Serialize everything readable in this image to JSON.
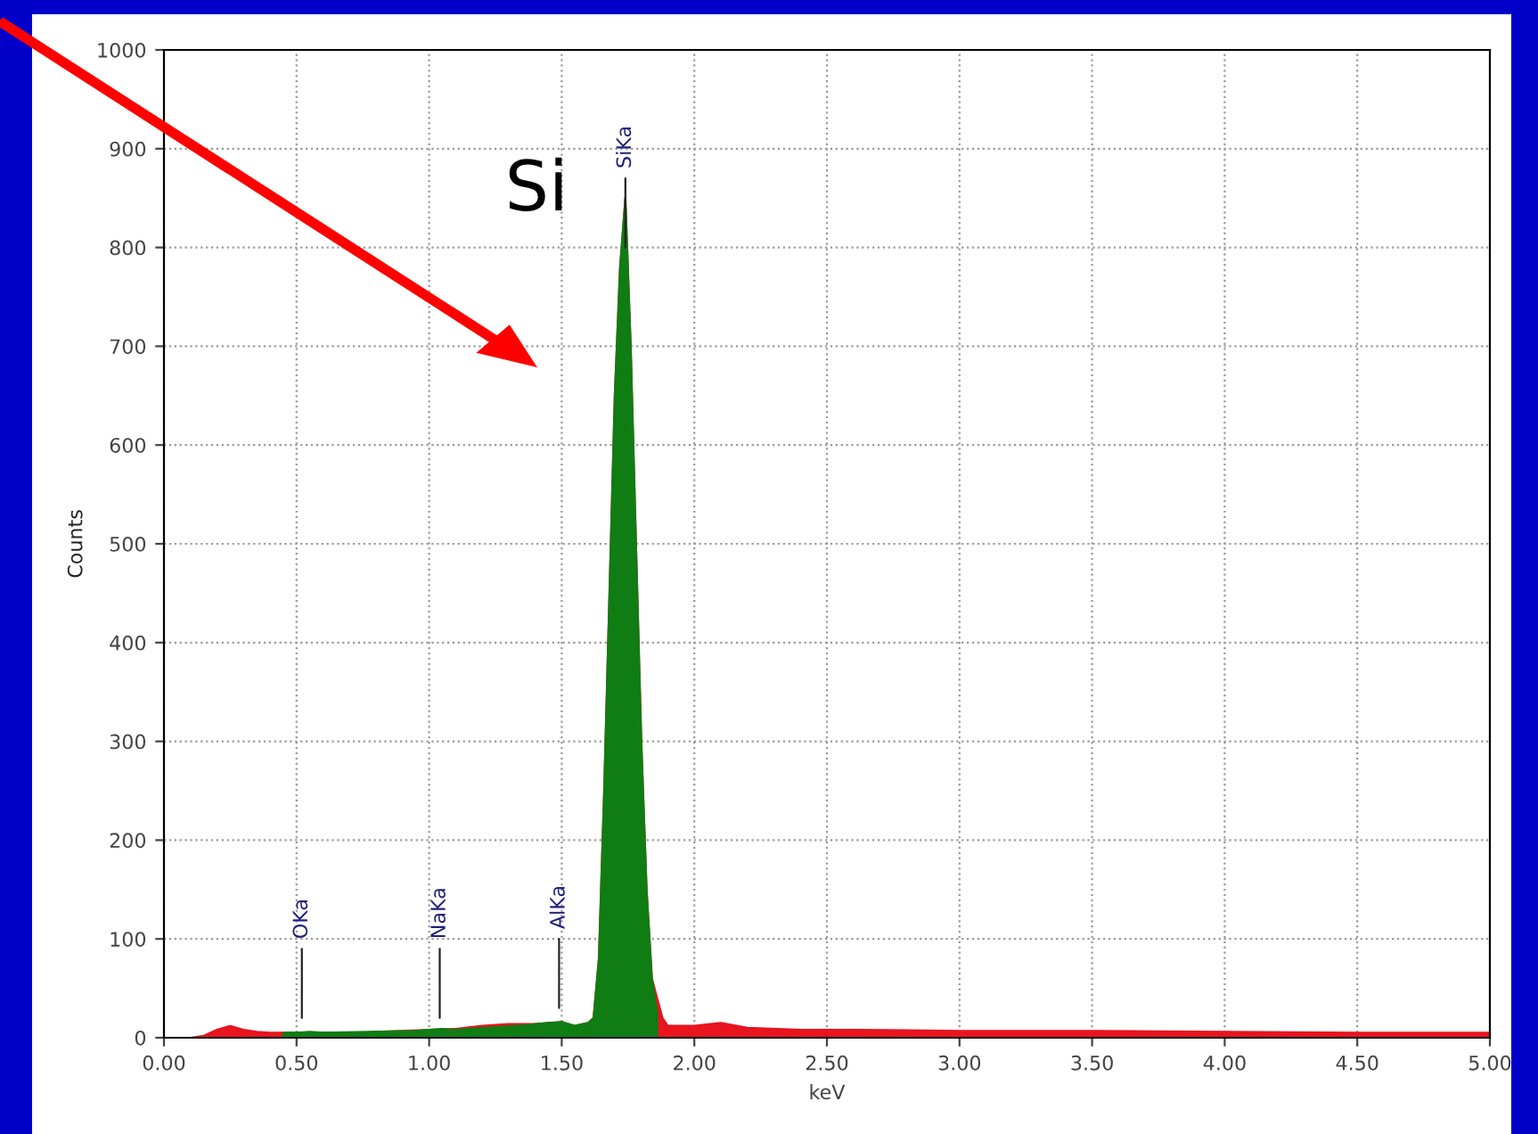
{
  "chart_data": {
    "type": "area",
    "xlabel": "keV",
    "ylabel": "Counts",
    "xlim": [
      0,
      5
    ],
    "xticks": [
      {
        "value": 0,
        "label": "0.00"
      },
      {
        "value": 0.5,
        "label": "0.50"
      },
      {
        "value": 1,
        "label": "1.00"
      },
      {
        "value": 1.5,
        "label": "1.50"
      },
      {
        "value": 2,
        "label": "2.00"
      },
      {
        "value": 2.5,
        "label": "2.50"
      },
      {
        "value": 3,
        "label": "3.00"
      },
      {
        "value": 3.5,
        "label": "3.50"
      },
      {
        "value": 4,
        "label": "4.00"
      },
      {
        "value": 4.5,
        "label": "4.50"
      },
      {
        "value": 5,
        "label": "5.00"
      }
    ],
    "ylim": [
      0,
      1000
    ],
    "yticks": [
      0,
      100,
      200,
      300,
      400,
      500,
      600,
      700,
      800,
      900,
      1000
    ],
    "grid": true,
    "series": [
      {
        "color": "#e8141e",
        "x": [
          0,
          0.1,
          0.15,
          0.2,
          0.25,
          0.3,
          0.35,
          0.4,
          0.5,
          0.6,
          0.7,
          0.8,
          0.9,
          1.0,
          1.1,
          1.2,
          1.3,
          1.4,
          1.5,
          1.55,
          1.6,
          1.62,
          1.64,
          1.66,
          1.68,
          1.7,
          1.72,
          1.74,
          1.76,
          1.78,
          1.8,
          1.82,
          1.84,
          1.86,
          1.88,
          1.9,
          2.0,
          2.1,
          2.2,
          2.4,
          2.6,
          3.0,
          3.5,
          4.0,
          4.5,
          5.0
        ],
        "values": [
          0,
          0,
          2,
          8,
          12,
          8,
          6,
          5,
          5,
          5,
          4,
          6,
          7,
          8,
          9,
          12,
          14,
          14,
          16,
          12,
          15,
          20,
          80,
          250,
          450,
          650,
          780,
          850,
          700,
          500,
          300,
          150,
          60,
          40,
          20,
          12,
          12,
          15,
          10,
          8,
          8,
          7,
          7,
          6,
          5,
          5
        ]
      },
      {
        "color": "#0f7d14",
        "x": [
          0.45,
          0.5,
          0.55,
          0.6,
          0.95,
          1.0,
          1.05,
          1.1,
          1.38,
          1.4,
          1.45,
          1.5,
          1.55,
          1.6,
          1.62,
          1.64,
          1.66,
          1.68,
          1.7,
          1.72,
          1.74,
          1.76,
          1.78,
          1.8,
          1.82,
          1.84,
          1.86
        ],
        "values": [
          5,
          5,
          6,
          5,
          7,
          8,
          9,
          8,
          13,
          14,
          15,
          16,
          12,
          15,
          20,
          80,
          250,
          450,
          650,
          780,
          850,
          700,
          500,
          300,
          150,
          60,
          25
        ]
      }
    ],
    "annotations": [
      "Si",
      "SiKa",
      "OKa",
      "NaKa",
      "AlKa"
    ]
  }
}
